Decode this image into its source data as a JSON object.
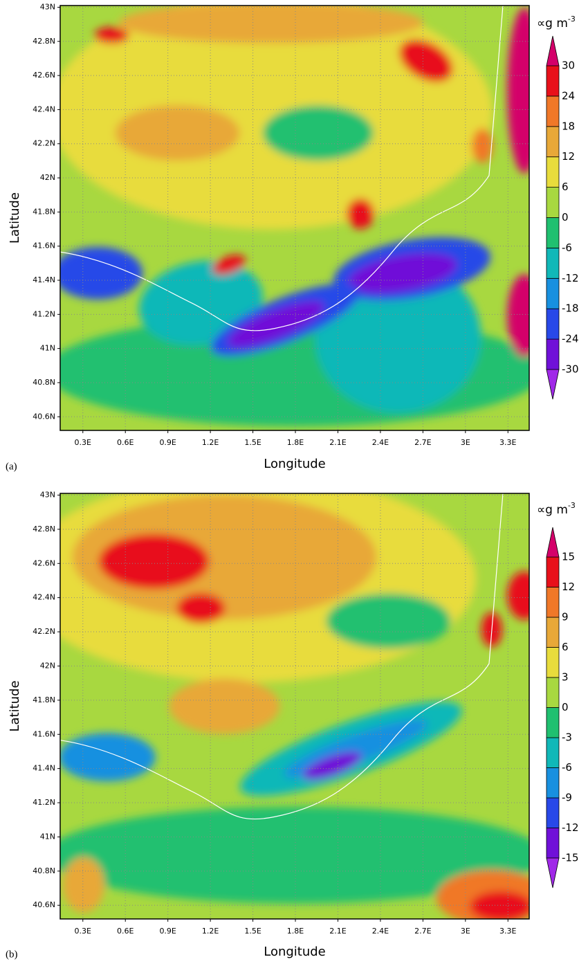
{
  "chart_data": [
    {
      "type": "contour",
      "panel_label": "(a)",
      "xlabel": "Longitude",
      "ylabel": "Latitude",
      "xlim": [
        0.14,
        3.45
      ],
      "ylim": [
        40.52,
        43.01
      ],
      "xticks": [
        {
          "value": 0.3,
          "label": "0.3E"
        },
        {
          "value": 0.6,
          "label": "0.6E"
        },
        {
          "value": 0.9,
          "label": "0.9E"
        },
        {
          "value": 1.2,
          "label": "1.2E"
        },
        {
          "value": 1.5,
          "label": "1.5E"
        },
        {
          "value": 1.8,
          "label": "1.8E"
        },
        {
          "value": 2.1,
          "label": "2.1E"
        },
        {
          "value": 2.4,
          "label": "2.4E"
        },
        {
          "value": 2.7,
          "label": "2.7E"
        },
        {
          "value": 3,
          "label": "3E"
        },
        {
          "value": 3.3,
          "label": "3.3E"
        }
      ],
      "yticks": [
        {
          "value": 40.6,
          "label": "40.6N"
        },
        {
          "value": 40.8,
          "label": "40.8N"
        },
        {
          "value": 41,
          "label": "41N"
        },
        {
          "value": 41.2,
          "label": "41.2N"
        },
        {
          "value": 41.4,
          "label": "41.4N"
        },
        {
          "value": 41.6,
          "label": "41.6N"
        },
        {
          "value": 41.8,
          "label": "41.8N"
        },
        {
          "value": 42,
          "label": "42N"
        },
        {
          "value": 42.2,
          "label": "42.2N"
        },
        {
          "value": 42.4,
          "label": "42.4N"
        },
        {
          "value": 42.6,
          "label": "42.6N"
        },
        {
          "value": 42.8,
          "label": "42.8N"
        },
        {
          "value": 43,
          "label": "43N"
        }
      ],
      "grid": true,
      "unit": "∝g m",
      "unit_sup": "-3",
      "levels": [
        -30,
        -24,
        -18,
        -12,
        -6,
        0,
        6,
        12,
        18,
        24,
        30
      ],
      "colors": [
        "#a028e8",
        "#7010d8",
        "#2848e8",
        "#1890e0",
        "#10b8b8",
        "#20c070",
        "#a8d840",
        "#e8dc3c",
        "#e8a838",
        "#f07828",
        "#e8101a",
        "#d4006a"
      ]
    },
    {
      "type": "contour",
      "panel_label": "(b)",
      "xlabel": "Longitude",
      "ylabel": "Latitude",
      "xlim": [
        0.14,
        3.45
      ],
      "ylim": [
        40.52,
        43.01
      ],
      "xticks": [
        {
          "value": 0.3,
          "label": "0.3E"
        },
        {
          "value": 0.6,
          "label": "0.6E"
        },
        {
          "value": 0.9,
          "label": "0.9E"
        },
        {
          "value": 1.2,
          "label": "1.2E"
        },
        {
          "value": 1.5,
          "label": "1.5E"
        },
        {
          "value": 1.8,
          "label": "1.8E"
        },
        {
          "value": 2.1,
          "label": "2.1E"
        },
        {
          "value": 2.4,
          "label": "2.4E"
        },
        {
          "value": 2.7,
          "label": "2.7E"
        },
        {
          "value": 3,
          "label": "3E"
        },
        {
          "value": 3.3,
          "label": "3.3E"
        }
      ],
      "yticks": [
        {
          "value": 40.6,
          "label": "40.6N"
        },
        {
          "value": 40.8,
          "label": "40.8N"
        },
        {
          "value": 41,
          "label": "41N"
        },
        {
          "value": 41.2,
          "label": "41.2N"
        },
        {
          "value": 41.4,
          "label": "41.4N"
        },
        {
          "value": 41.6,
          "label": "41.6N"
        },
        {
          "value": 41.8,
          "label": "41.8N"
        },
        {
          "value": 42,
          "label": "42N"
        },
        {
          "value": 42.2,
          "label": "42.2N"
        },
        {
          "value": 42.4,
          "label": "42.4N"
        },
        {
          "value": 42.6,
          "label": "42.6N"
        },
        {
          "value": 42.8,
          "label": "42.8N"
        },
        {
          "value": 43,
          "label": "43N"
        }
      ],
      "grid": true,
      "unit": "∝g m",
      "unit_sup": "-3",
      "levels": [
        -15,
        -12,
        -9,
        -6,
        -3,
        0,
        3,
        6,
        9,
        12,
        15
      ],
      "colors": [
        "#a028e8",
        "#7010d8",
        "#2848e8",
        "#1890e0",
        "#10b8b8",
        "#20c070",
        "#a8d840",
        "#e8dc3c",
        "#e8a838",
        "#f07828",
        "#e8101a",
        "#d4006a"
      ]
    }
  ]
}
